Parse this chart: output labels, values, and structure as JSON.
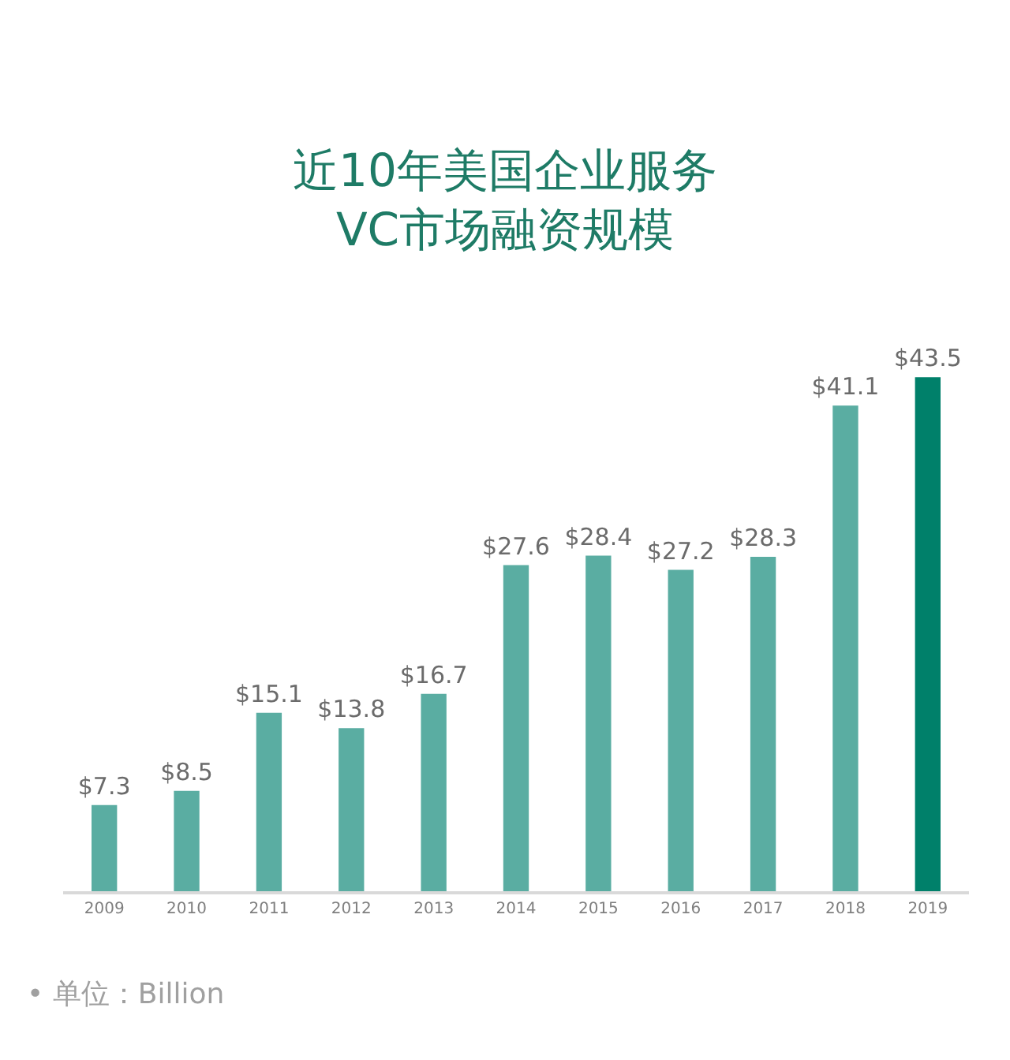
{
  "chart_data": {
    "type": "bar",
    "title": "近10年美国企业服务\nVC市场融资规模",
    "categories": [
      "2009",
      "2010",
      "2011",
      "2012",
      "2013",
      "2014",
      "2015",
      "2016",
      "2017",
      "2018",
      "2019"
    ],
    "values": [
      7.3,
      8.5,
      15.1,
      13.8,
      16.7,
      27.6,
      28.4,
      27.2,
      28.3,
      41.1,
      43.5
    ],
    "value_labels": [
      "$7.3",
      "$8.5",
      "$15.1",
      "$13.8",
      "$16.7",
      "$27.6",
      "$28.4",
      "$27.2",
      "$28.3",
      "$41.1",
      "$43.5"
    ],
    "colors": [
      "#5aada2",
      "#5aada2",
      "#5aada2",
      "#5aada2",
      "#5aada2",
      "#5aada2",
      "#5aada2",
      "#5aada2",
      "#5aada2",
      "#5aada2",
      "#00806a"
    ],
    "tick_labels": "x",
    "annotations": [
      "• 单位：Billion"
    ]
  }
}
